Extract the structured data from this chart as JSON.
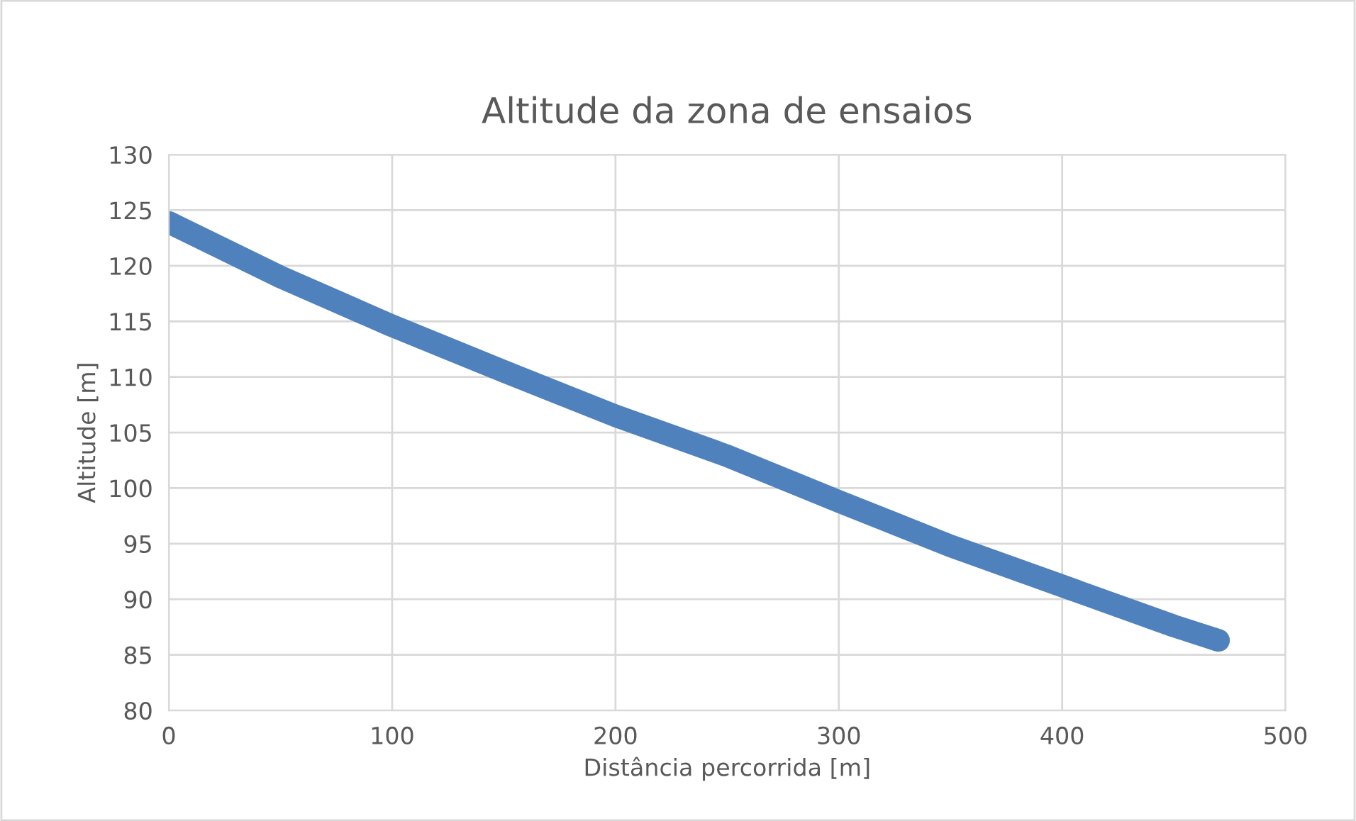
{
  "chart_data": {
    "type": "line",
    "title": "Altitude da zona de ensaios",
    "xlabel": "Distância percorrida [m]",
    "ylabel": "Altitude [m]",
    "series": [
      {
        "color": "#4f81bd",
        "x": [
          0,
          50,
          100,
          150,
          200,
          250,
          300,
          350,
          400,
          450,
          470
        ],
        "values": [
          123.9,
          119.0,
          114.6,
          110.5,
          106.5,
          102.9,
          98.8,
          94.8,
          91.2,
          87.6,
          86.3
        ]
      }
    ],
    "xlim": [
      0,
      500
    ],
    "xticks": [
      0,
      100,
      200,
      300,
      400,
      500
    ],
    "ylim": [
      80,
      130
    ],
    "yticks": [
      80,
      85,
      90,
      95,
      100,
      105,
      110,
      115,
      120,
      125,
      130
    ],
    "grid": true,
    "line_style": "solid"
  }
}
